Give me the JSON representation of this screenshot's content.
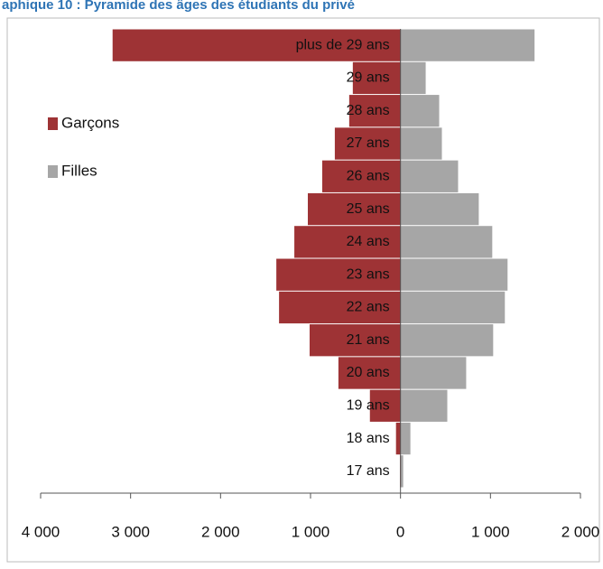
{
  "chart_data": {
    "type": "bar",
    "orientation": "horizontal",
    "stacked": false,
    "title": "aphique 10 : Pyramide des âges des étudiants du privé",
    "categories": [
      "17 ans",
      "18 ans",
      "19 ans",
      "20 ans",
      "21 ans",
      "22 ans",
      "23 ans",
      "24 ans",
      "25 ans",
      "26 ans",
      "27 ans",
      "28 ans",
      "29 ans",
      "plus de 29 ans"
    ],
    "series": [
      {
        "name": "Garçons",
        "color": "#9e3335",
        "values": [
          -5,
          -50,
          -340,
          -690,
          -1010,
          -1350,
          -1380,
          -1180,
          -1030,
          -870,
          -730,
          -570,
          -530,
          -3200
        ]
      },
      {
        "name": "Filles",
        "color": "#a6a6a6",
        "values": [
          30,
          110,
          520,
          730,
          1030,
          1160,
          1190,
          1020,
          870,
          640,
          460,
          430,
          280,
          1490
        ]
      }
    ],
    "xlim": [
      -4000,
      2000
    ],
    "xticks": [
      {
        "value": -4000,
        "label": "4 000"
      },
      {
        "value": -3000,
        "label": "3 000"
      },
      {
        "value": -2000,
        "label": "2 000"
      },
      {
        "value": -1000,
        "label": "1 000"
      },
      0,
      {
        "value": 1000,
        "label": "1 000"
      },
      {
        "value": 2000,
        "label": "2 000"
      }
    ],
    "legend": "left"
  }
}
